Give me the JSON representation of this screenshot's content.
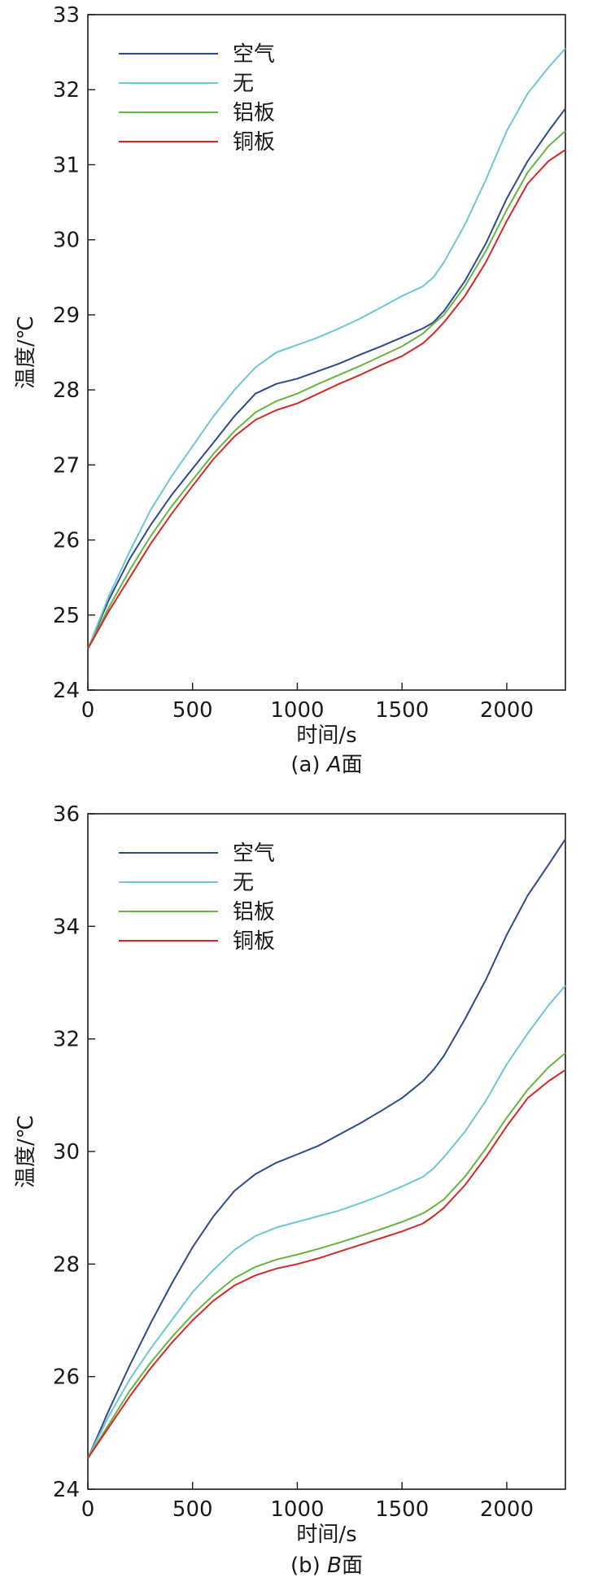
{
  "figure": {
    "panels": [
      {
        "caption_prefix": "(a) ",
        "caption_letter": "A",
        "caption_suffix": "面"
      },
      {
        "caption_prefix": "(b) ",
        "caption_letter": "B",
        "caption_suffix": "面"
      }
    ]
  },
  "chart_data": [
    {
      "type": "line",
      "xlabel": "时间/s",
      "ylabel": "温度/℃",
      "xlim": [
        0,
        2280
      ],
      "ylim": [
        24,
        33
      ],
      "xticks": [
        0,
        500,
        1000,
        1500,
        2000
      ],
      "yticks": [
        24,
        25,
        26,
        27,
        28,
        29,
        30,
        31,
        32,
        33
      ],
      "grid": false,
      "legend_position": "top-left",
      "series": [
        {
          "name": "空气",
          "color": "#2e4a8c",
          "x": [
            0,
            100,
            200,
            300,
            400,
            500,
            600,
            700,
            800,
            900,
            1000,
            1100,
            1200,
            1300,
            1400,
            1500,
            1600,
            1650,
            1700,
            1800,
            1900,
            2000,
            2100,
            2200,
            2280
          ],
          "y": [
            24.55,
            25.2,
            25.75,
            26.2,
            26.6,
            26.95,
            27.3,
            27.65,
            27.95,
            28.08,
            28.15,
            28.25,
            28.35,
            28.47,
            28.58,
            28.7,
            28.82,
            28.9,
            29.05,
            29.45,
            29.95,
            30.55,
            31.05,
            31.45,
            31.75
          ]
        },
        {
          "name": "无",
          "color": "#6ec7d0",
          "x": [
            0,
            100,
            200,
            300,
            400,
            500,
            600,
            700,
            800,
            900,
            1000,
            1100,
            1200,
            1300,
            1400,
            1500,
            1600,
            1650,
            1700,
            1800,
            1900,
            2000,
            2100,
            2200,
            2280
          ],
          "y": [
            24.55,
            25.25,
            25.85,
            26.4,
            26.85,
            27.25,
            27.65,
            28.0,
            28.3,
            28.5,
            28.6,
            28.7,
            28.82,
            28.95,
            29.1,
            29.25,
            29.38,
            29.5,
            29.7,
            30.2,
            30.8,
            31.45,
            31.95,
            32.3,
            32.55
          ]
        },
        {
          "name": "铝板",
          "color": "#6bb340",
          "x": [
            0,
            100,
            200,
            300,
            400,
            500,
            600,
            700,
            800,
            900,
            1000,
            1100,
            1200,
            1300,
            1400,
            1500,
            1600,
            1650,
            1700,
            1800,
            1900,
            2000,
            2100,
            2200,
            2280
          ],
          "y": [
            24.55,
            25.1,
            25.6,
            26.05,
            26.45,
            26.8,
            27.15,
            27.45,
            27.7,
            27.85,
            27.95,
            28.08,
            28.2,
            28.32,
            28.45,
            28.58,
            28.75,
            28.88,
            29.0,
            29.38,
            29.85,
            30.4,
            30.9,
            31.25,
            31.45
          ]
        },
        {
          "name": "铜板",
          "color": "#d02a2a",
          "x": [
            0,
            100,
            200,
            300,
            400,
            500,
            600,
            700,
            800,
            900,
            1000,
            1100,
            1200,
            1300,
            1400,
            1500,
            1600,
            1650,
            1700,
            1800,
            1900,
            2000,
            2100,
            2200,
            2280
          ],
          "y": [
            24.55,
            25.05,
            25.5,
            25.95,
            26.35,
            26.72,
            27.08,
            27.38,
            27.6,
            27.73,
            27.82,
            27.95,
            28.08,
            28.2,
            28.33,
            28.45,
            28.62,
            28.75,
            28.9,
            29.25,
            29.7,
            30.25,
            30.75,
            31.05,
            31.2
          ]
        }
      ]
    },
    {
      "type": "line",
      "xlabel": "时间/s",
      "ylabel": "温度/℃",
      "xlim": [
        0,
        2280
      ],
      "ylim": [
        24,
        36
      ],
      "xticks": [
        0,
        500,
        1000,
        1500,
        2000
      ],
      "yticks": [
        24,
        26,
        28,
        30,
        32,
        34,
        36
      ],
      "grid": false,
      "legend_position": "top-left",
      "series": [
        {
          "name": "空气",
          "color": "#2e4a8c",
          "x": [
            0,
            100,
            200,
            300,
            400,
            500,
            600,
            700,
            800,
            900,
            1000,
            1100,
            1200,
            1300,
            1400,
            1500,
            1600,
            1650,
            1700,
            1800,
            1900,
            2000,
            2100,
            2200,
            2280
          ],
          "y": [
            24.55,
            25.4,
            26.2,
            26.95,
            27.65,
            28.3,
            28.85,
            29.3,
            29.6,
            29.8,
            29.95,
            30.1,
            30.3,
            30.5,
            30.72,
            30.95,
            31.25,
            31.45,
            31.7,
            32.35,
            33.05,
            33.85,
            34.55,
            35.1,
            35.55
          ]
        },
        {
          "name": "无",
          "color": "#6ec7d0",
          "x": [
            0,
            100,
            200,
            300,
            400,
            500,
            600,
            700,
            800,
            900,
            1000,
            1100,
            1200,
            1300,
            1400,
            1500,
            1600,
            1650,
            1700,
            1800,
            1900,
            2000,
            2100,
            2200,
            2280
          ],
          "y": [
            24.55,
            25.3,
            25.95,
            26.5,
            27.0,
            27.5,
            27.9,
            28.25,
            28.5,
            28.65,
            28.75,
            28.85,
            28.95,
            29.08,
            29.22,
            29.38,
            29.55,
            29.7,
            29.9,
            30.35,
            30.9,
            31.55,
            32.1,
            32.6,
            32.95
          ]
        },
        {
          "name": "铝板",
          "color": "#6bb340",
          "x": [
            0,
            100,
            200,
            300,
            400,
            500,
            600,
            700,
            800,
            900,
            1000,
            1100,
            1200,
            1300,
            1400,
            1500,
            1600,
            1650,
            1700,
            1800,
            1900,
            2000,
            2100,
            2200,
            2280
          ],
          "y": [
            24.55,
            25.15,
            25.75,
            26.25,
            26.7,
            27.1,
            27.45,
            27.75,
            27.95,
            28.08,
            28.17,
            28.27,
            28.38,
            28.5,
            28.62,
            28.75,
            28.9,
            29.02,
            29.15,
            29.55,
            30.05,
            30.6,
            31.1,
            31.5,
            31.75
          ]
        },
        {
          "name": "铜板",
          "color": "#d02a2a",
          "x": [
            0,
            100,
            200,
            300,
            400,
            500,
            600,
            700,
            800,
            900,
            1000,
            1100,
            1200,
            1300,
            1400,
            1500,
            1600,
            1650,
            1700,
            1800,
            1900,
            2000,
            2100,
            2200,
            2280
          ],
          "y": [
            24.55,
            25.1,
            25.65,
            26.15,
            26.6,
            27.0,
            27.35,
            27.62,
            27.8,
            27.92,
            28.0,
            28.1,
            28.22,
            28.34,
            28.46,
            28.58,
            28.72,
            28.85,
            29.0,
            29.4,
            29.9,
            30.45,
            30.95,
            31.25,
            31.45
          ]
        }
      ]
    }
  ]
}
